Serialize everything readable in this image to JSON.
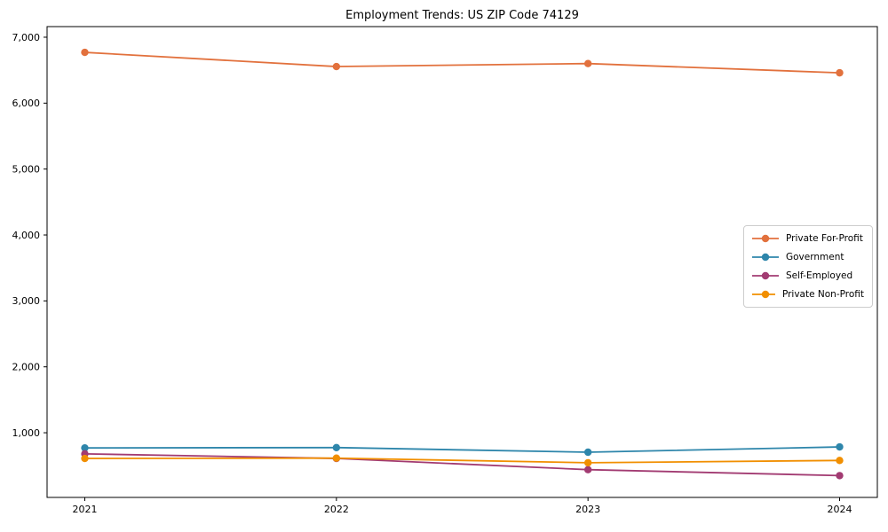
{
  "chart_data": {
    "type": "line",
    "title": "Employment Trends: US ZIP Code 74129",
    "xlabel": "",
    "ylabel": "",
    "x_categories": [
      "2021",
      "2022",
      "2023",
      "2024"
    ],
    "x_values": [
      2021,
      2022,
      2023,
      2024
    ],
    "series": [
      {
        "name": "Private For-Profit",
        "color": "#E2713D",
        "values": [
          6770,
          6555,
          6600,
          6460
        ]
      },
      {
        "name": "Government",
        "color": "#2E86AB",
        "values": [
          770,
          775,
          705,
          785
        ]
      },
      {
        "name": "Self-Employed",
        "color": "#A23B72",
        "values": [
          680,
          610,
          440,
          350
        ]
      },
      {
        "name": "Private Non-Profit",
        "color": "#F18F01",
        "values": [
          610,
          615,
          545,
          580
        ]
      }
    ],
    "y_ticks": [
      1000,
      2000,
      3000,
      4000,
      5000,
      6000,
      7000
    ],
    "y_tick_labels": [
      "1,000",
      "2,000",
      "3,000",
      "4,000",
      "5,000",
      "6,000",
      "7,000"
    ],
    "xlim": [
      2020.85,
      2024.15
    ],
    "ylim": [
      19,
      7161
    ],
    "grid": false,
    "legend_position": "right-center",
    "marker": "circle",
    "background_color": "#ffffff",
    "spine_color": "#000000",
    "text_color": "#000000"
  }
}
